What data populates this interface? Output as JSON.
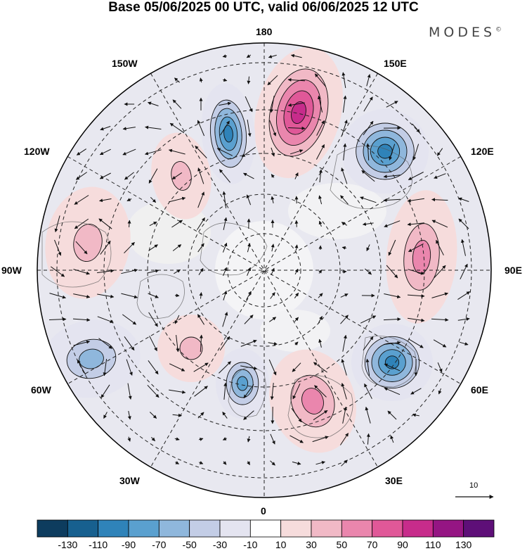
{
  "header": {
    "title": "Base 05/06/2025 00 UTC, valid 06/06/2025 12 UTC",
    "brand": "MODES",
    "brand_mark": "©"
  },
  "map": {
    "projection": "north-polar-stereographic",
    "longitude_labels": {
      "top": "180",
      "top_right": "150E",
      "upper_right": "120E",
      "right": "90E",
      "lower_right": "60E",
      "bottom_right": "30E",
      "bottom": "0",
      "bottom_left": "30W",
      "lower_left": "60W",
      "left": "90W",
      "upper_left": "120W",
      "top_left": "150W"
    },
    "vector_scale_label": "10",
    "anomalies": [
      {
        "id": "pos-north-pacific",
        "sign": "positive",
        "peak": 110
      },
      {
        "id": "neg-aleutian",
        "sign": "negative",
        "peak": -90
      },
      {
        "id": "neg-east-siberia",
        "sign": "negative",
        "peak": -90
      },
      {
        "id": "pos-alaska",
        "sign": "positive",
        "peak": 50
      },
      {
        "id": "pos-north-canada",
        "sign": "positive",
        "peak": 50
      },
      {
        "id": "pos-central-siberia",
        "sign": "positive",
        "peak": 70
      },
      {
        "id": "neg-ural",
        "sign": "negative",
        "peak": -90
      },
      {
        "id": "pos-scandinavia",
        "sign": "positive",
        "peak": 70
      },
      {
        "id": "neg-greenland-sea",
        "sign": "negative",
        "peak": -70
      },
      {
        "id": "pos-labrador",
        "sign": "positive",
        "peak": 50
      },
      {
        "id": "neg-north-atlantic",
        "sign": "negative",
        "peak": -50
      }
    ]
  },
  "colorbar": {
    "colors": [
      "#0d3c5e",
      "#17608f",
      "#2f83b9",
      "#5aa0cf",
      "#8fb7dc",
      "#c3cde6",
      "#e4e4f0",
      "#ffffff",
      "#f6dcdc",
      "#f1b9c6",
      "#ea86ad",
      "#e05898",
      "#c72c8b",
      "#951583",
      "#5e0f78"
    ],
    "labels": [
      "-130",
      "-110",
      "-90",
      "-70",
      "-50",
      "-30",
      "-10",
      "10",
      "30",
      "50",
      "70",
      "90",
      "110",
      "130"
    ]
  }
}
